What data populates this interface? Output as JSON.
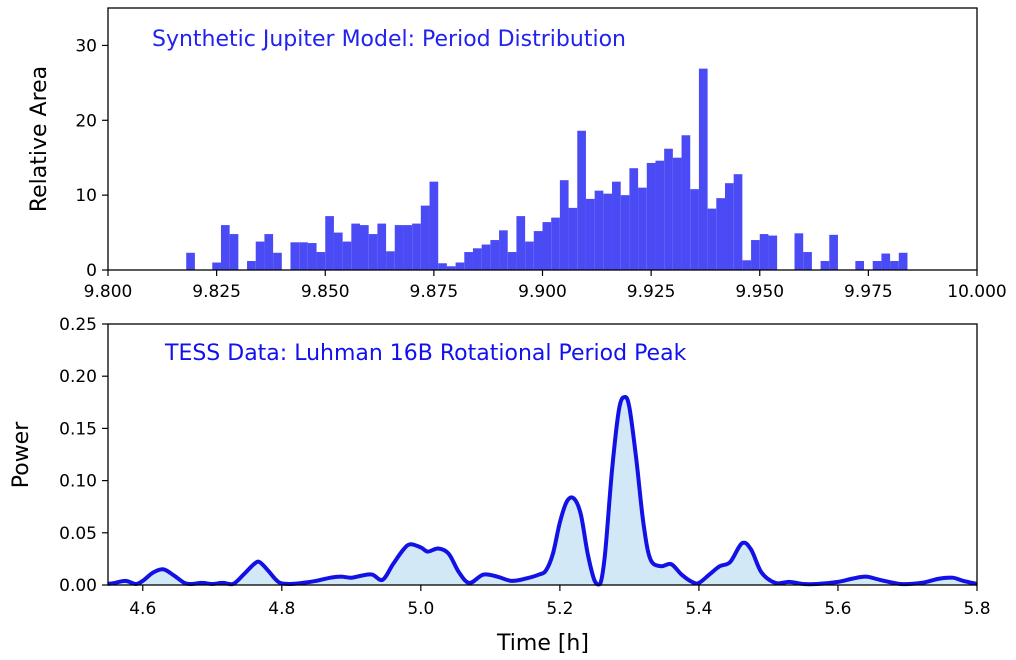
{
  "chart_data": [
    {
      "type": "bar",
      "title": "Synthetic Jupiter Model: Period Distribution",
      "title_color": "#2222ee",
      "xlabel": "",
      "ylabel": "Relative Area",
      "xlim": [
        9.8,
        10.0
      ],
      "ylim": [
        0,
        35
      ],
      "bin_width": 0.002,
      "bar_color": "#4b4bf5",
      "grid": false,
      "xticks": [
        9.8,
        9.825,
        9.85,
        9.875,
        9.9,
        9.925,
        9.95,
        9.975,
        10.0
      ],
      "xtick_labels": [
        "9.800",
        "9.825",
        "9.850",
        "9.875",
        "9.900",
        "9.925",
        "9.950",
        "9.975",
        "10.000"
      ],
      "yticks": [
        0,
        10,
        20,
        30
      ],
      "ytick_labels": [
        "0",
        "10",
        "20",
        "30"
      ],
      "x": [
        9.819,
        9.825,
        9.827,
        9.829,
        9.831,
        9.833,
        9.835,
        9.837,
        9.839,
        9.843,
        9.845,
        9.847,
        9.849,
        9.851,
        9.853,
        9.855,
        9.857,
        9.859,
        9.861,
        9.863,
        9.865,
        9.867,
        9.869,
        9.871,
        9.873,
        9.875,
        9.877,
        9.879,
        9.881,
        9.883,
        9.885,
        9.887,
        9.889,
        9.891,
        9.893,
        9.895,
        9.897,
        9.899,
        9.901,
        9.903,
        9.905,
        9.907,
        9.909,
        9.911,
        9.913,
        9.915,
        9.917,
        9.919,
        9.921,
        9.923,
        9.925,
        9.927,
        9.929,
        9.931,
        9.933,
        9.935,
        9.937,
        9.939,
        9.941,
        9.943,
        9.945,
        9.947,
        9.949,
        9.951,
        9.953,
        9.955,
        9.959,
        9.961,
        9.963,
        9.965,
        9.967,
        9.973,
        9.977,
        9.979,
        9.981,
        9.983
      ],
      "values": [
        2.3,
        1.0,
        6.0,
        4.8,
        0.0,
        1.2,
        3.8,
        4.8,
        2.3,
        3.7,
        3.7,
        3.6,
        2.4,
        7.2,
        5.0,
        3.8,
        6.2,
        6.0,
        4.8,
        6.2,
        2.5,
        6.0,
        6.0,
        6.2,
        8.6,
        11.8,
        0.9,
        0.5,
        1.0,
        2.4,
        2.9,
        3.4,
        4.0,
        5.3,
        2.4,
        7.2,
        3.8,
        5.2,
        6.4,
        7.0,
        12.0,
        8.3,
        18.6,
        9.5,
        10.6,
        10.2,
        11.8,
        10.0,
        13.6,
        11.0,
        14.3,
        14.6,
        16.2,
        15.0,
        18.0,
        10.8,
        26.9,
        8.2,
        9.6,
        11.6,
        12.8,
        1.3,
        4.0,
        4.8,
        4.6,
        0.0,
        4.9,
        2.4,
        0.0,
        1.2,
        4.7,
        1.2,
        1.2,
        2.2,
        1.2,
        2.3
      ]
    },
    {
      "type": "area",
      "title": "TESS Data: Luhman 16B Rotational Period Peak",
      "title_color": "#1111ee",
      "xlabel": "Time [h]",
      "ylabel": "Power",
      "xlim": [
        4.55,
        5.8
      ],
      "ylim": [
        0,
        0.25
      ],
      "line_color": "#1212e6",
      "fill_color": "#d3e8f7",
      "grid": false,
      "xticks": [
        4.6,
        4.8,
        5.0,
        5.2,
        5.4,
        5.6,
        5.8
      ],
      "xtick_labels": [
        "4.6",
        "4.8",
        "5.0",
        "5.2",
        "5.4",
        "5.6",
        "5.8"
      ],
      "yticks": [
        0.0,
        0.05,
        0.1,
        0.15,
        0.2,
        0.25
      ],
      "ytick_labels": [
        "0.00",
        "0.05",
        "0.10",
        "0.15",
        "0.20",
        "0.25"
      ],
      "x": [
        4.55,
        4.56,
        4.575,
        4.59,
        4.6,
        4.615,
        4.63,
        4.645,
        4.66,
        4.67,
        4.685,
        4.7,
        4.715,
        4.73,
        4.745,
        4.76,
        4.768,
        4.78,
        4.795,
        4.81,
        4.83,
        4.85,
        4.87,
        4.885,
        4.9,
        4.915,
        4.93,
        4.945,
        4.96,
        4.975,
        4.985,
        5.0,
        5.01,
        5.025,
        5.04,
        5.055,
        5.07,
        5.09,
        5.11,
        5.13,
        5.15,
        5.17,
        5.18,
        5.19,
        5.2,
        5.21,
        5.22,
        5.23,
        5.24,
        5.25,
        5.258,
        5.265,
        5.275,
        5.285,
        5.293,
        5.3,
        5.31,
        5.32,
        5.33,
        5.345,
        5.36,
        5.375,
        5.39,
        5.4,
        5.415,
        5.43,
        5.445,
        5.462,
        5.475,
        5.49,
        5.51,
        5.53,
        5.55,
        5.57,
        5.6,
        5.62,
        5.64,
        5.66,
        5.69,
        5.72,
        5.745,
        5.765,
        5.78,
        5.8
      ],
      "values": [
        0.001,
        0.002,
        0.004,
        0.001,
        0.004,
        0.012,
        0.015,
        0.009,
        0.002,
        0.001,
        0.002,
        0.001,
        0.002,
        0.001,
        0.01,
        0.02,
        0.022,
        0.014,
        0.003,
        0.001,
        0.002,
        0.004,
        0.007,
        0.008,
        0.007,
        0.009,
        0.01,
        0.005,
        0.02,
        0.034,
        0.039,
        0.036,
        0.032,
        0.035,
        0.03,
        0.012,
        0.002,
        0.01,
        0.008,
        0.004,
        0.006,
        0.01,
        0.014,
        0.03,
        0.06,
        0.08,
        0.083,
        0.068,
        0.03,
        0.004,
        0.001,
        0.03,
        0.11,
        0.168,
        0.18,
        0.17,
        0.12,
        0.06,
        0.025,
        0.018,
        0.02,
        0.01,
        0.003,
        0.002,
        0.01,
        0.018,
        0.022,
        0.04,
        0.034,
        0.012,
        0.002,
        0.003,
        0.001,
        0.001,
        0.003,
        0.006,
        0.008,
        0.005,
        0.001,
        0.002,
        0.006,
        0.007,
        0.004,
        0.001
      ]
    }
  ]
}
